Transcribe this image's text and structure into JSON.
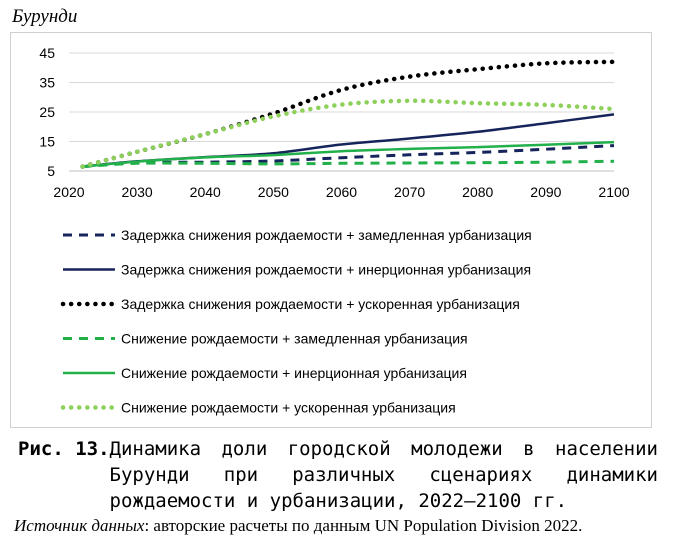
{
  "region_title": "Бурунди",
  "caption": {
    "label": "Рис. 13.",
    "text": "Динамика доли городской молодежи в населении Бурунди при различных сценариях динамики рождаемости и урбанизации, 2022–2100 гг."
  },
  "source": {
    "label": "Источник данных",
    "text": ": авторские расчеты по данным UN Population Division 2022."
  },
  "chart_data": {
    "type": "line",
    "title": "",
    "xlabel": "",
    "ylabel": "",
    "xlim": [
      2020,
      2100
    ],
    "ylim": [
      5,
      45
    ],
    "x_ticks": [
      2020,
      2030,
      2040,
      2050,
      2060,
      2070,
      2080,
      2090,
      2100
    ],
    "y_ticks": [
      5,
      15,
      25,
      35,
      45
    ],
    "grid": "horizontal",
    "legend_position": "bottom",
    "x": [
      2022,
      2030,
      2040,
      2050,
      2060,
      2070,
      2080,
      2090,
      2100
    ],
    "series": [
      {
        "name": "Задержка снижения рождаемости + замедленная урбанизация",
        "color": "#16245c",
        "style": "dashed",
        "values": [
          6.5,
          7.8,
          8.0,
          8.4,
          9.5,
          10.5,
          11.3,
          12.4,
          13.6
        ]
      },
      {
        "name": "Задержка снижения рождаемости + инерционная урбанизация",
        "color": "#16245c",
        "style": "solid",
        "values": [
          6.5,
          8.3,
          9.7,
          11.0,
          14.0,
          16.0,
          18.3,
          21.2,
          24.2
        ]
      },
      {
        "name": "Задержка снижения рождаемости + ускоренная урбанизация",
        "color": "#000000",
        "style": "dotted",
        "values": [
          6.5,
          11.5,
          17.5,
          24.5,
          32.5,
          37.0,
          39.5,
          41.5,
          42.0
        ]
      },
      {
        "name": "Снижение рождаемости + замедленная урбанизация",
        "color": "#22b04b",
        "style": "dashed",
        "values": [
          6.5,
          7.6,
          7.6,
          7.4,
          7.6,
          7.7,
          7.8,
          8.0,
          8.3
        ]
      },
      {
        "name": "Снижение рождаемости + инерционная урбанизация",
        "color": "#22b04b",
        "style": "solid",
        "values": [
          6.5,
          8.2,
          9.6,
          10.4,
          11.7,
          12.5,
          13.1,
          13.9,
          14.8
        ]
      },
      {
        "name": "Снижение рождаемости + ускоренная урбанизация",
        "color": "#8dd05a",
        "style": "dotted",
        "values": [
          6.5,
          11.5,
          17.5,
          23.5,
          27.5,
          28.8,
          28.0,
          27.4,
          26.0
        ]
      }
    ]
  }
}
